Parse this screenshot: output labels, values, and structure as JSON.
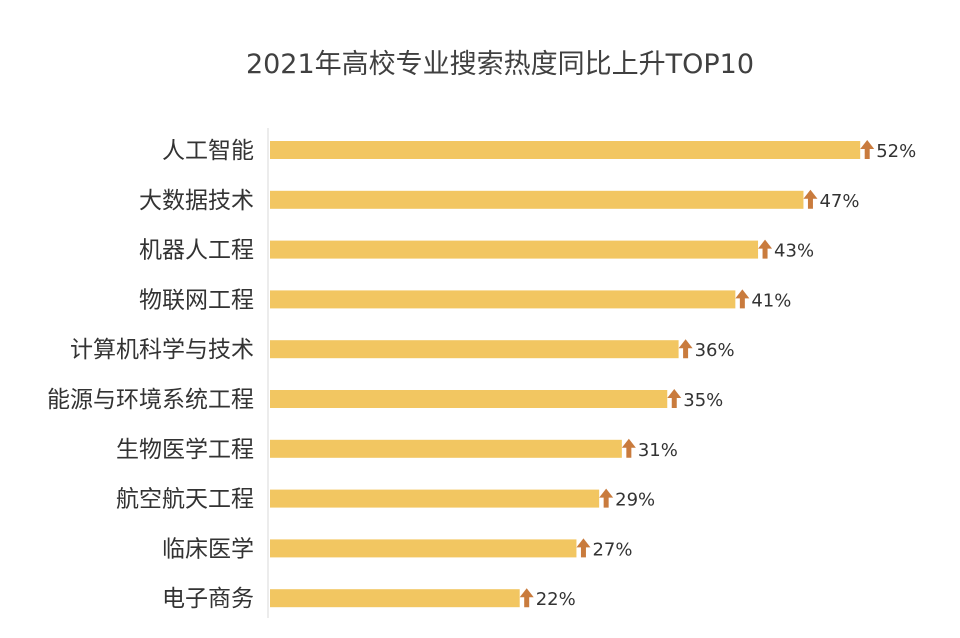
{
  "chart_data": {
    "type": "bar",
    "orientation": "horizontal",
    "title": "2021年高校专业搜索热度同比上升TOP10",
    "categories": [
      "人工智能",
      "大数据技术",
      "机器人工程",
      "物联网工程",
      "计算机科学与技术",
      "能源与环境系统工程",
      "生物医学工程",
      "航空航天工程",
      "临床医学",
      "电子商务"
    ],
    "values": [
      52,
      47,
      43,
      41,
      36,
      35,
      31,
      29,
      27,
      22
    ],
    "value_labels": [
      "52%",
      "47%",
      "43%",
      "41%",
      "36%",
      "35%",
      "31%",
      "29%",
      "27%",
      "22%"
    ],
    "value_unit": "%",
    "xlim": [
      0,
      60
    ],
    "grid": false,
    "legend": "none",
    "marker": "up-arrow-icon"
  },
  "colors": {
    "bar": "#F2C661",
    "arrow": "#C97B3D",
    "axis": "#D9D9D9",
    "text": "#333333",
    "title": "#404040"
  }
}
